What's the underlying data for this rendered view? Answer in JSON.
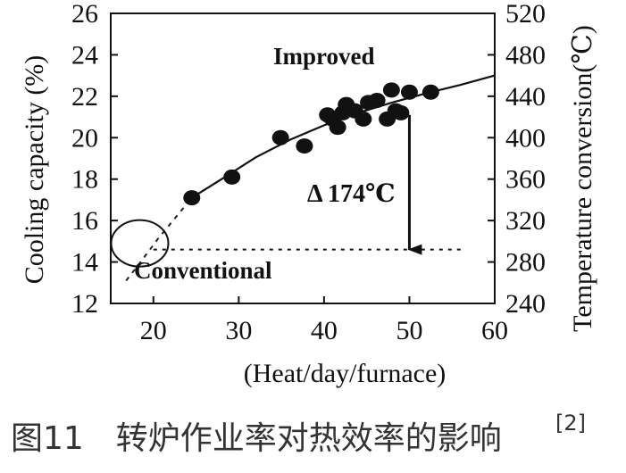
{
  "chart_data": {
    "type": "scatter",
    "title": "",
    "caption": {
      "text": "图11　转炉作业率对热效率的影响",
      "ref": "[2]"
    },
    "xlabel": "(Heat/day/furnace)",
    "ylabel_left": "Cooling capacity (%)",
    "ylabel_right": "Temperature conversion(℃)",
    "xlim": [
      15,
      60
    ],
    "ylim_left": [
      12,
      26
    ],
    "ylim_right": [
      240,
      520
    ],
    "x_ticks": [
      20,
      30,
      40,
      50,
      60
    ],
    "y_ticks_left": [
      12,
      14,
      16,
      18,
      20,
      22,
      24,
      26
    ],
    "y_ticks_right": [
      240,
      280,
      320,
      360,
      400,
      440,
      480,
      520
    ],
    "grid": false,
    "series": [
      {
        "name": "",
        "points": [
          {
            "x": 24.5,
            "y": 17.1
          },
          {
            "x": 29.2,
            "y": 18.1
          },
          {
            "x": 34.9,
            "y": 20.0
          },
          {
            "x": 37.7,
            "y": 19.6
          },
          {
            "x": 40.4,
            "y": 21.1
          },
          {
            "x": 41.0,
            "y": 20.9
          },
          {
            "x": 41.6,
            "y": 20.5
          },
          {
            "x": 42.2,
            "y": 21.2
          },
          {
            "x": 42.6,
            "y": 21.6
          },
          {
            "x": 43.6,
            "y": 21.3
          },
          {
            "x": 44.6,
            "y": 20.9
          },
          {
            "x": 45.2,
            "y": 21.7
          },
          {
            "x": 46.2,
            "y": 21.8
          },
          {
            "x": 47.4,
            "y": 20.9
          },
          {
            "x": 47.9,
            "y": 22.3
          },
          {
            "x": 48.4,
            "y": 21.3
          },
          {
            "x": 49.0,
            "y": 21.2
          },
          {
            "x": 50.0,
            "y": 22.2
          },
          {
            "x": 52.5,
            "y": 22.2
          }
        ]
      }
    ],
    "trend": {
      "solid": [
        {
          "x": 24.5,
          "y": 17.1
        },
        {
          "x": 28.0,
          "y": 18.0
        },
        {
          "x": 32.0,
          "y": 19.05
        },
        {
          "x": 36.0,
          "y": 19.9
        },
        {
          "x": 40.0,
          "y": 20.6
        },
        {
          "x": 44.0,
          "y": 21.2
        },
        {
          "x": 48.0,
          "y": 21.7
        },
        {
          "x": 52.0,
          "y": 22.15
        },
        {
          "x": 56.0,
          "y": 22.55
        },
        {
          "x": 60.0,
          "y": 23.0
        }
      ],
      "dashed": [
        {
          "x": 16.8,
          "y": 13.1
        },
        {
          "x": 18.5,
          "y": 14.0
        },
        {
          "x": 20.5,
          "y": 15.1
        },
        {
          "x": 22.5,
          "y": 16.1
        },
        {
          "x": 24.5,
          "y": 17.1
        }
      ]
    },
    "annotations": {
      "improved_label": "Improved",
      "conventional_label": "Conventional",
      "delta_label": "Δ 174℃",
      "reference_line_y": 14.6,
      "reference_line_x": [
        20.0,
        56.0
      ],
      "arrow": {
        "x": 50.0,
        "y_from": 21.1,
        "y_to": 14.6
      },
      "conventional_marker": {
        "x": 18.4,
        "y": 14.9
      }
    }
  }
}
